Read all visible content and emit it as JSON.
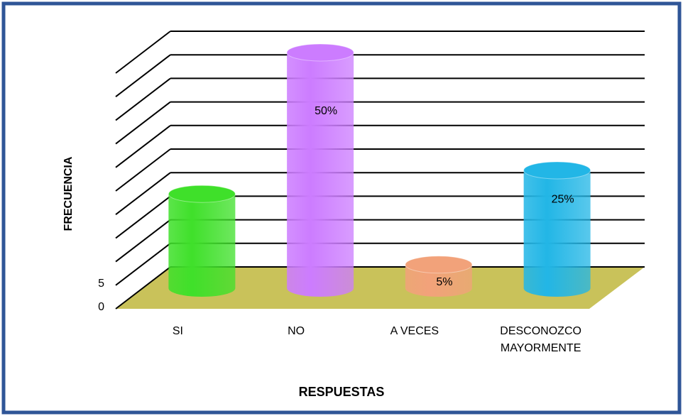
{
  "chart_data": {
    "type": "bar3d_cylinder",
    "categories": [
      "SI",
      "NO",
      "A VECES",
      "DESCONOZCO MAYORMENTE"
    ],
    "values": [
      20,
      50,
      5,
      25
    ],
    "value_labels": [
      null,
      "50%",
      "5%",
      "25%"
    ],
    "colors": [
      "#3fe02a",
      "#cc7cff",
      "#f2a27a",
      "#22b6e6"
    ],
    "floor_color": "#c9c25a",
    "ylim": [
      0,
      50
    ],
    "yticks": [
      0,
      5
    ],
    "grid_lines": [
      0,
      5,
      10,
      15,
      20,
      25,
      30,
      35,
      40,
      45,
      50
    ],
    "y_label": "FRECUENCIA",
    "x_label": "RESPUESTAS"
  }
}
